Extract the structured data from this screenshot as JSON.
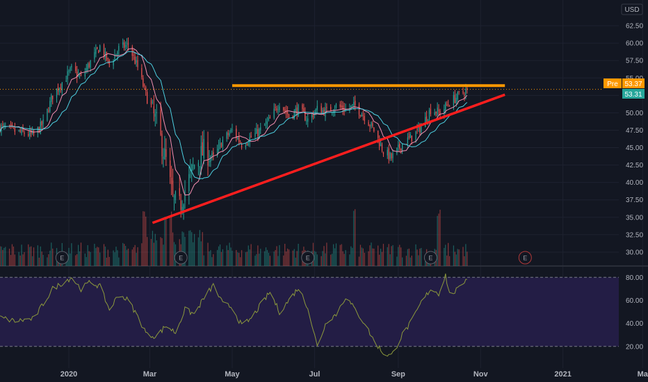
{
  "currency_label": "USD",
  "price_flags": {
    "pre_label": "Pre",
    "pre_value": "53.37",
    "pre_color": "#ff9800",
    "last_value": "53.31",
    "last_color": "#26a69a"
  },
  "earnings_marker_label": "E",
  "colors": {
    "background": "#131722",
    "grid": "#1e2230",
    "candle_up": "#26a69a",
    "candle_down": "#ef5350",
    "ma_fast": "#f48fb1",
    "ma_slow": "#4dd0e1",
    "resistance_line": "#ff9800",
    "trend_line": "#ff1e1e",
    "rsi_line": "#8d9a3c",
    "rsi_band": "#231d45"
  },
  "chart_data": {
    "type": "candlestick",
    "y_ticks": [
      62.5,
      60,
      57.5,
      55,
      52.5,
      50,
      47.5,
      45,
      42.5,
      40,
      37.5,
      35,
      32.5,
      30
    ],
    "x_tick_labels": [
      "2020",
      "Mar",
      "May",
      "Jul",
      "Sep",
      "Nov",
      "2021",
      "Ma"
    ],
    "x_tick_dates": [
      "2020-01-01",
      "2020-03-01",
      "2020-05-01",
      "2020-07-01",
      "2020-09-01",
      "2020-11-01",
      "2021-01-01",
      "2021-03-01"
    ],
    "x_range": [
      "2019-11-11",
      "2021-03-05"
    ],
    "price_ylim": [
      28.5,
      64
    ],
    "log_scale": false,
    "grid": true,
    "price_anchors": [
      [
        "2019-11-11",
        48.0
      ],
      [
        "2019-11-25",
        47.2
      ],
      [
        "2019-12-06",
        46.8
      ],
      [
        "2019-12-13",
        48.5
      ],
      [
        "2019-12-20",
        52.5
      ],
      [
        "2020-01-03",
        56.2
      ],
      [
        "2020-01-10",
        55.0
      ],
      [
        "2020-01-17",
        57.3
      ],
      [
        "2020-01-24",
        59.5
      ],
      [
        "2020-01-31",
        57.0
      ],
      [
        "2020-02-07",
        59.2
      ],
      [
        "2020-02-14",
        59.8
      ],
      [
        "2020-02-21",
        56.5
      ],
      [
        "2020-02-28",
        52.0
      ],
      [
        "2020-03-06",
        48.5
      ],
      [
        "2020-03-13",
        43.0
      ],
      [
        "2020-03-18",
        37.5
      ],
      [
        "2020-03-23",
        36.5
      ],
      [
        "2020-03-27",
        39.0
      ],
      [
        "2020-04-03",
        42.5
      ],
      [
        "2020-04-10",
        44.5
      ],
      [
        "2020-04-17",
        43.5
      ],
      [
        "2020-04-24",
        46.0
      ],
      [
        "2020-05-01",
        47.5
      ],
      [
        "2020-05-08",
        45.5
      ],
      [
        "2020-05-15",
        46.5
      ],
      [
        "2020-05-22",
        47.5
      ],
      [
        "2020-05-29",
        49.0
      ],
      [
        "2020-06-05",
        51.5
      ],
      [
        "2020-06-12",
        49.5
      ],
      [
        "2020-06-19",
        50.5
      ],
      [
        "2020-06-26",
        49.0
      ],
      [
        "2020-07-03",
        50.5
      ],
      [
        "2020-07-10",
        50.2
      ],
      [
        "2020-07-17",
        51.0
      ],
      [
        "2020-07-24",
        50.5
      ],
      [
        "2020-07-31",
        51.0
      ],
      [
        "2020-08-07",
        49.5
      ],
      [
        "2020-08-14",
        47.5
      ],
      [
        "2020-08-21",
        44.5
      ],
      [
        "2020-08-27",
        43.5
      ],
      [
        "2020-09-04",
        45.5
      ],
      [
        "2020-09-11",
        46.5
      ],
      [
        "2020-09-18",
        48.0
      ],
      [
        "2020-09-25",
        50.5
      ],
      [
        "2020-10-02",
        50.0
      ],
      [
        "2020-10-09",
        51.5
      ],
      [
        "2020-10-16",
        52.5
      ],
      [
        "2020-10-22",
        53.31
      ]
    ],
    "rsi_anchors": [
      [
        "2019-11-11",
        45
      ],
      [
        "2019-11-22",
        42
      ],
      [
        "2019-12-06",
        44
      ],
      [
        "2019-12-20",
        70
      ],
      [
        "2020-01-03",
        80
      ],
      [
        "2020-01-10",
        70
      ],
      [
        "2020-01-17",
        76
      ],
      [
        "2020-01-24",
        72
      ],
      [
        "2020-01-31",
        52
      ],
      [
        "2020-02-07",
        65
      ],
      [
        "2020-02-14",
        60
      ],
      [
        "2020-02-21",
        46
      ],
      [
        "2020-02-28",
        30
      ],
      [
        "2020-03-06",
        29
      ],
      [
        "2020-03-13",
        38
      ],
      [
        "2020-03-20",
        32
      ],
      [
        "2020-03-27",
        52
      ],
      [
        "2020-04-03",
        48
      ],
      [
        "2020-04-10",
        62
      ],
      [
        "2020-04-17",
        73
      ],
      [
        "2020-04-24",
        57
      ],
      [
        "2020-05-01",
        54
      ],
      [
        "2020-05-08",
        38
      ],
      [
        "2020-05-15",
        44
      ],
      [
        "2020-05-22",
        56
      ],
      [
        "2020-05-29",
        67
      ],
      [
        "2020-06-05",
        50
      ],
      [
        "2020-06-12",
        60
      ],
      [
        "2020-06-19",
        71
      ],
      [
        "2020-06-26",
        54
      ],
      [
        "2020-07-03",
        20
      ],
      [
        "2020-07-10",
        42
      ],
      [
        "2020-07-17",
        48
      ],
      [
        "2020-07-24",
        63
      ],
      [
        "2020-07-31",
        52
      ],
      [
        "2020-08-07",
        40
      ],
      [
        "2020-08-14",
        25
      ],
      [
        "2020-08-21",
        14
      ],
      [
        "2020-08-27",
        12
      ],
      [
        "2020-09-04",
        30
      ],
      [
        "2020-09-11",
        42
      ],
      [
        "2020-09-18",
        58
      ],
      [
        "2020-09-25",
        70
      ],
      [
        "2020-10-01",
        66
      ],
      [
        "2020-10-06",
        82
      ],
      [
        "2020-10-09",
        65
      ],
      [
        "2020-10-16",
        70
      ],
      [
        "2020-10-22",
        80
      ]
    ],
    "rsi_ticks": [
      80,
      60,
      40,
      20
    ],
    "rsi_ylim": [
      6,
      88
    ],
    "rsi_bands": [
      20,
      80
    ],
    "volume_spike_dates": [
      "2020-02-26",
      "2020-03-13",
      "2020-03-16",
      "2020-07-31",
      "2020-10-01"
    ],
    "resistance": {
      "start": "2020-05-01",
      "end": "2020-11-19",
      "value": 53.9
    },
    "trendline": {
      "start": "2020-03-03",
      "start_value": 34.2,
      "end": "2020-11-19",
      "end_value": 52.6
    },
    "earnings_dates": [
      "2019-12-27",
      "2020-03-24",
      "2020-06-26",
      "2020-09-25",
      "2020-12-04"
    ],
    "last_price": 53.31,
    "premarket_price": 53.37
  }
}
